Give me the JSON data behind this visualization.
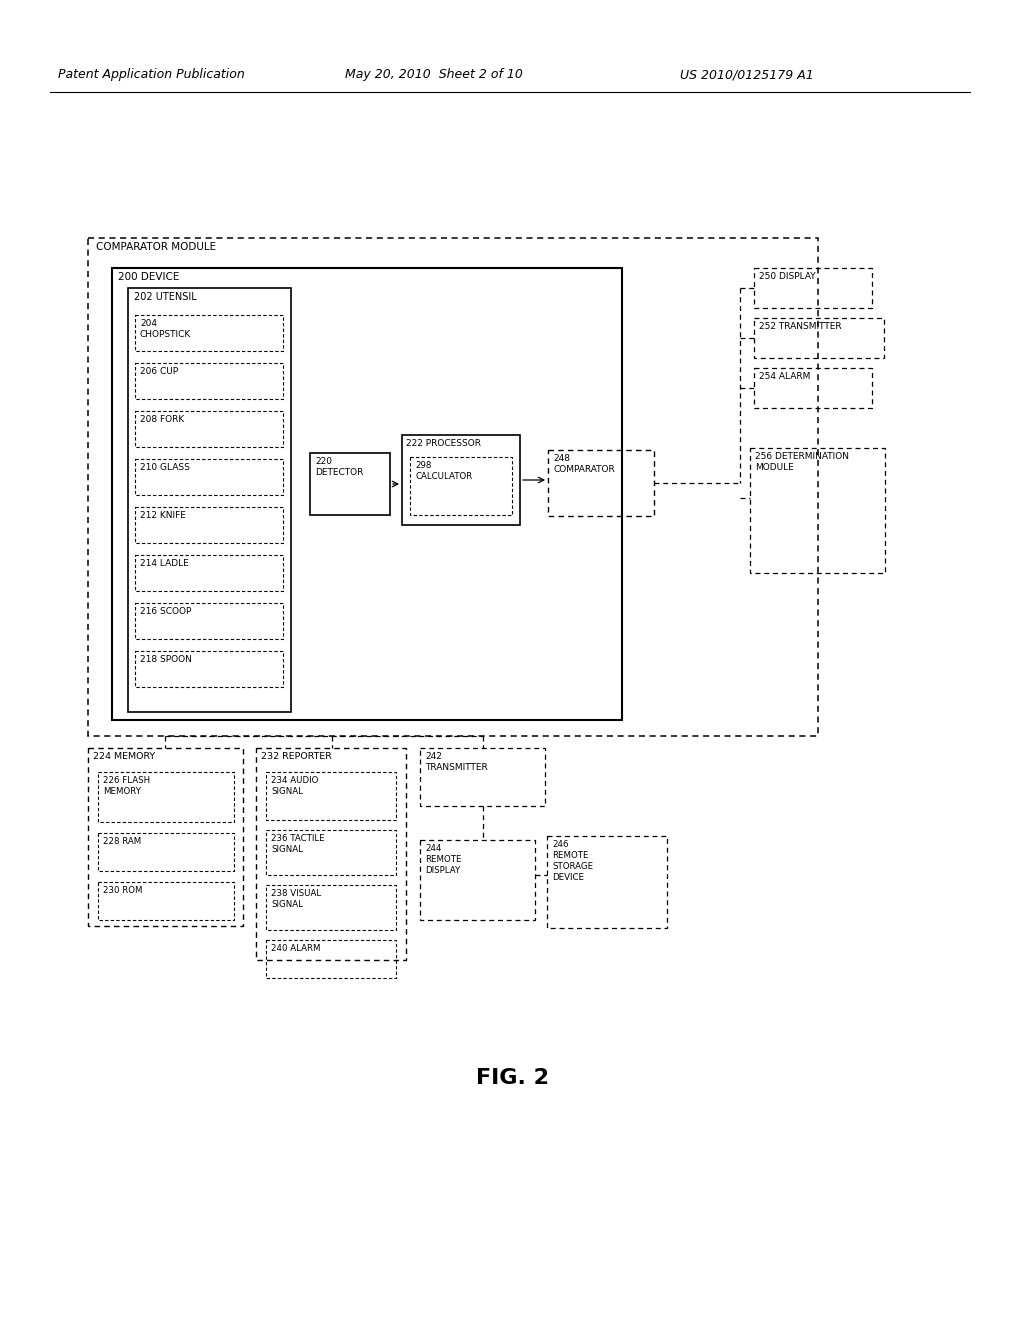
{
  "bg_color": "#ffffff",
  "header_left": "Patent Application Publication",
  "header_mid": "May 20, 2010  Sheet 2 of 10",
  "header_right": "US 2010/0125179 A1",
  "fig_label": "FIG. 2",
  "comparator_module_label": "COMPARATOR MODULE",
  "device_label": "200 DEVICE",
  "utensil_label": "202 UTENSIL",
  "utensil_items": [
    "204\nCHOPSTICK",
    "206 CUP",
    "208 FORK",
    "210 GLASS",
    "212 KNIFE",
    "214 LADLE",
    "216 SCOOP",
    "218 SPOON"
  ],
  "detector_label": "220\nDETECTOR",
  "processor_label": "222 PROCESSOR",
  "calculator_label": "298\nCALCULATOR",
  "comparator_label": "248\nCOMPARATOR",
  "display_label": "250 DISPLAY",
  "transmitter_top_label": "252 TRANSMITTER",
  "alarm_top_label": "254 ALARM",
  "determination_label": "256 DETERMINATION\nMODULE",
  "memory_label": "224 MEMORY",
  "flash_label": "226 FLASH\nMEMORY",
  "ram_label": "228 RAM",
  "rom_label": "230 ROM",
  "reporter_label": "232 REPORTER",
  "audio_label": "234 AUDIO\nSIGNAL",
  "tactile_label": "236 TACTILE\nSIGNAL",
  "visual_label": "238 VISUAL\nSIGNAL",
  "alarm_bot_label": "240 ALARM",
  "transmitter242_label": "242\nTRANSMITTER",
  "remote_display_label": "244\nREMOTE\nDISPLAY",
  "remote_storage_label": "246\nREMOTE\nSTORAGE\nDEVICE"
}
